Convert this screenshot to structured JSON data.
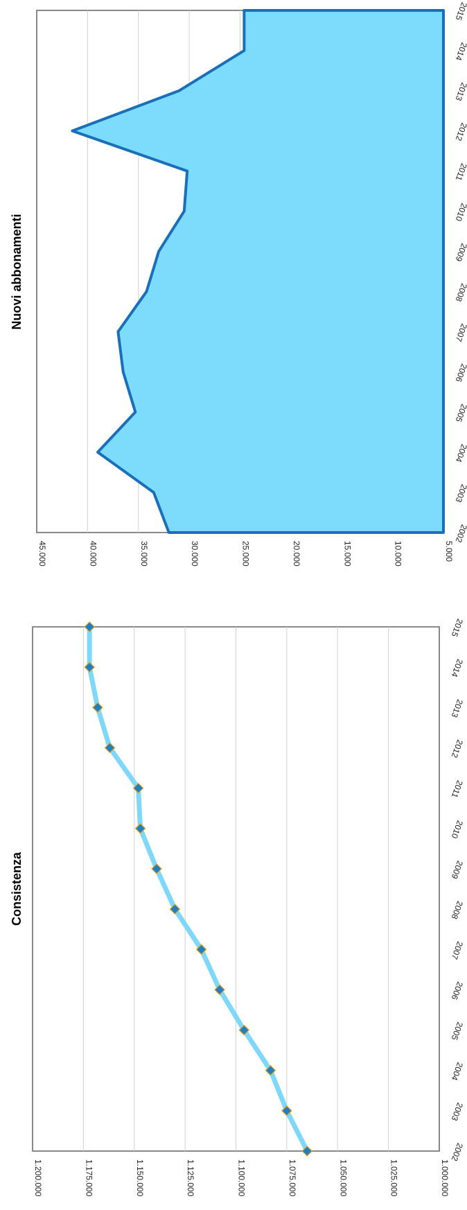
{
  "chart_data": [
    {
      "type": "line",
      "title": "Consistenza",
      "xlabel": "",
      "ylabel": "",
      "categories": [
        "2002",
        "2003",
        "2004",
        "2005",
        "2006",
        "2007",
        "2008",
        "2009",
        "2010",
        "2011",
        "2012",
        "2013",
        "2014",
        "2015"
      ],
      "values": [
        1065000,
        1075000,
        1083000,
        1096000,
        1108000,
        1117000,
        1130000,
        1139000,
        1147000,
        1148000,
        1162000,
        1168000,
        1172000,
        1172000
      ],
      "ylim": [
        1000000,
        1200000
      ],
      "yticks": [
        1000000,
        1025000,
        1050000,
        1075000,
        1100000,
        1125000,
        1150000,
        1175000,
        1200000
      ],
      "ytick_labels": [
        "1.000.000",
        "1.025.000",
        "1.050.000",
        "1.075.000",
        "1.100.000",
        "1.125.000",
        "1.150.000",
        "1.175.000",
        "1.200.000"
      ],
      "grid": true,
      "line_color": "#80d8f8",
      "marker_fill": "#1f7fc0",
      "marker_edge": "#e8a020",
      "marker_shape": "diamond"
    },
    {
      "type": "area",
      "title": "Nuovi abbonamenti",
      "xlabel": "",
      "ylabel": "",
      "categories": [
        "2002",
        "2003",
        "2004",
        "2005",
        "2006",
        "2007",
        "2008",
        "2009",
        "2010",
        "2011",
        "2012",
        "2013",
        "2014",
        "2015"
      ],
      "values": [
        32000,
        33500,
        39000,
        35300,
        36500,
        37000,
        34200,
        33000,
        30500,
        30200,
        41500,
        31000,
        24600,
        24600
      ],
      "ylim": [
        5000,
        45000
      ],
      "yticks": [
        5000,
        10000,
        15000,
        20000,
        25000,
        30000,
        35000,
        40000,
        45000
      ],
      "ytick_labels": [
        "5.000",
        "10.000",
        "15.000",
        "20.000",
        "25.000",
        "30.000",
        "35.000",
        "40.000",
        "45.000"
      ],
      "grid": true,
      "fill_color": "#7ddcfc",
      "line_color": "#1a6fb8"
    }
  ]
}
